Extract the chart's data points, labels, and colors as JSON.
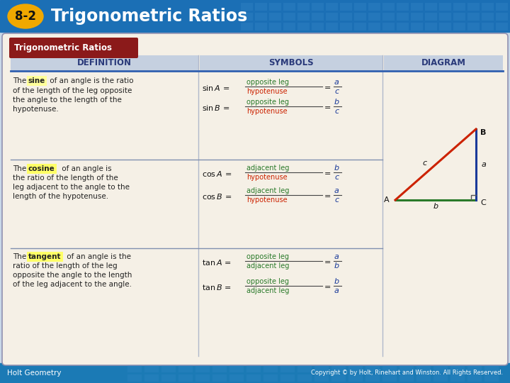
{
  "title_text": "Trigonometric Ratios",
  "badge_text": "8-2",
  "header_bg": "#1b6fb5",
  "badge_color": "#f0a800",
  "main_bg": "#c8d8e8",
  "card_bg": "#f5f0e6",
  "card_border": "#9090b0",
  "table_header_bg": "#c5d0e0",
  "table_header_text": "#2a3a7a",
  "red_label_bg": "#8b1a1a",
  "section_divider": "#8090b0",
  "def_text": "#222222",
  "sine_highlight": "#ffff99",
  "cosine_highlight": "#ffff66",
  "tangent_highlight": "#ffff66",
  "green_text": "#2a7a2a",
  "red_text": "#cc2200",
  "blue_text": "#1a3a9a",
  "footer_bg": "#1b7ab5",
  "footer_left": "Holt Geometry",
  "footer_right": "Copyright © by Holt, Rinehart and Winston. All Rights Reserved.",
  "tri_red": "#cc2200",
  "tri_green": "#2a7a2a",
  "tri_blue": "#1a3a9a"
}
